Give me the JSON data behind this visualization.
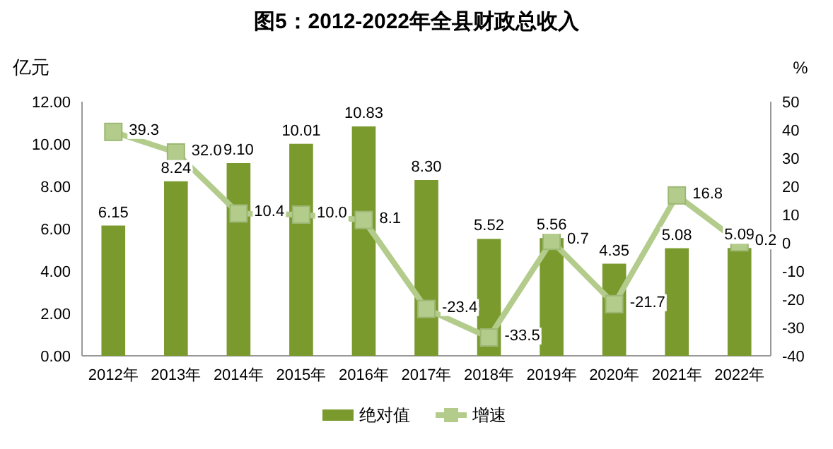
{
  "chart_data": {
    "type": "bar",
    "title": "图5：2012-2022年全县财政总收入",
    "ylabel": "亿元",
    "y2label": "%",
    "categories": [
      "2012年",
      "2013年",
      "2014年",
      "2015年",
      "2016年",
      "2017年",
      "2018年",
      "2019年",
      "2020年",
      "2021年",
      "2022年"
    ],
    "series": [
      {
        "name": "绝对值",
        "color": "#7a9a2e",
        "values": [
          6.15,
          8.24,
          9.1,
          10.01,
          10.83,
          8.3,
          5.52,
          5.56,
          4.35,
          5.08,
          5.09
        ],
        "value_labels": [
          "6.15",
          "8.24",
          "9.10",
          "10.01",
          "10.83",
          "8.30",
          "5.52",
          "5.56",
          "4.35",
          "5.08",
          "5.09"
        ]
      },
      {
        "name": "增速",
        "type": "line",
        "axis": "y2",
        "color": "#b3cc8c",
        "marker": "square",
        "values": [
          39.3,
          32.0,
          10.4,
          10.0,
          8.1,
          -23.4,
          -33.5,
          0.7,
          -21.7,
          16.8,
          0.2
        ],
        "value_labels": [
          "39.3",
          "32.0",
          "10.4",
          "10.0",
          "8.1",
          "-23.4",
          "-33.5",
          "0.7",
          "-21.7",
          "16.8",
          "0.2"
        ]
      }
    ],
    "ylim": [
      0,
      12
    ],
    "yticks": [
      {
        "value": 0,
        "label": "0.00"
      },
      {
        "value": 2,
        "label": "2.00"
      },
      {
        "value": 4,
        "label": "4.00"
      },
      {
        "value": 6,
        "label": "6.00"
      },
      {
        "value": 8,
        "label": "8.00"
      },
      {
        "value": 10,
        "label": "10.00"
      },
      {
        "value": 12,
        "label": "12.00"
      }
    ],
    "y2lim": [
      -40,
      50
    ],
    "y2ticks": [
      -40,
      -30,
      -20,
      -10,
      0,
      10,
      20,
      30,
      40,
      50
    ],
    "grid": false,
    "legend": "bottom"
  }
}
